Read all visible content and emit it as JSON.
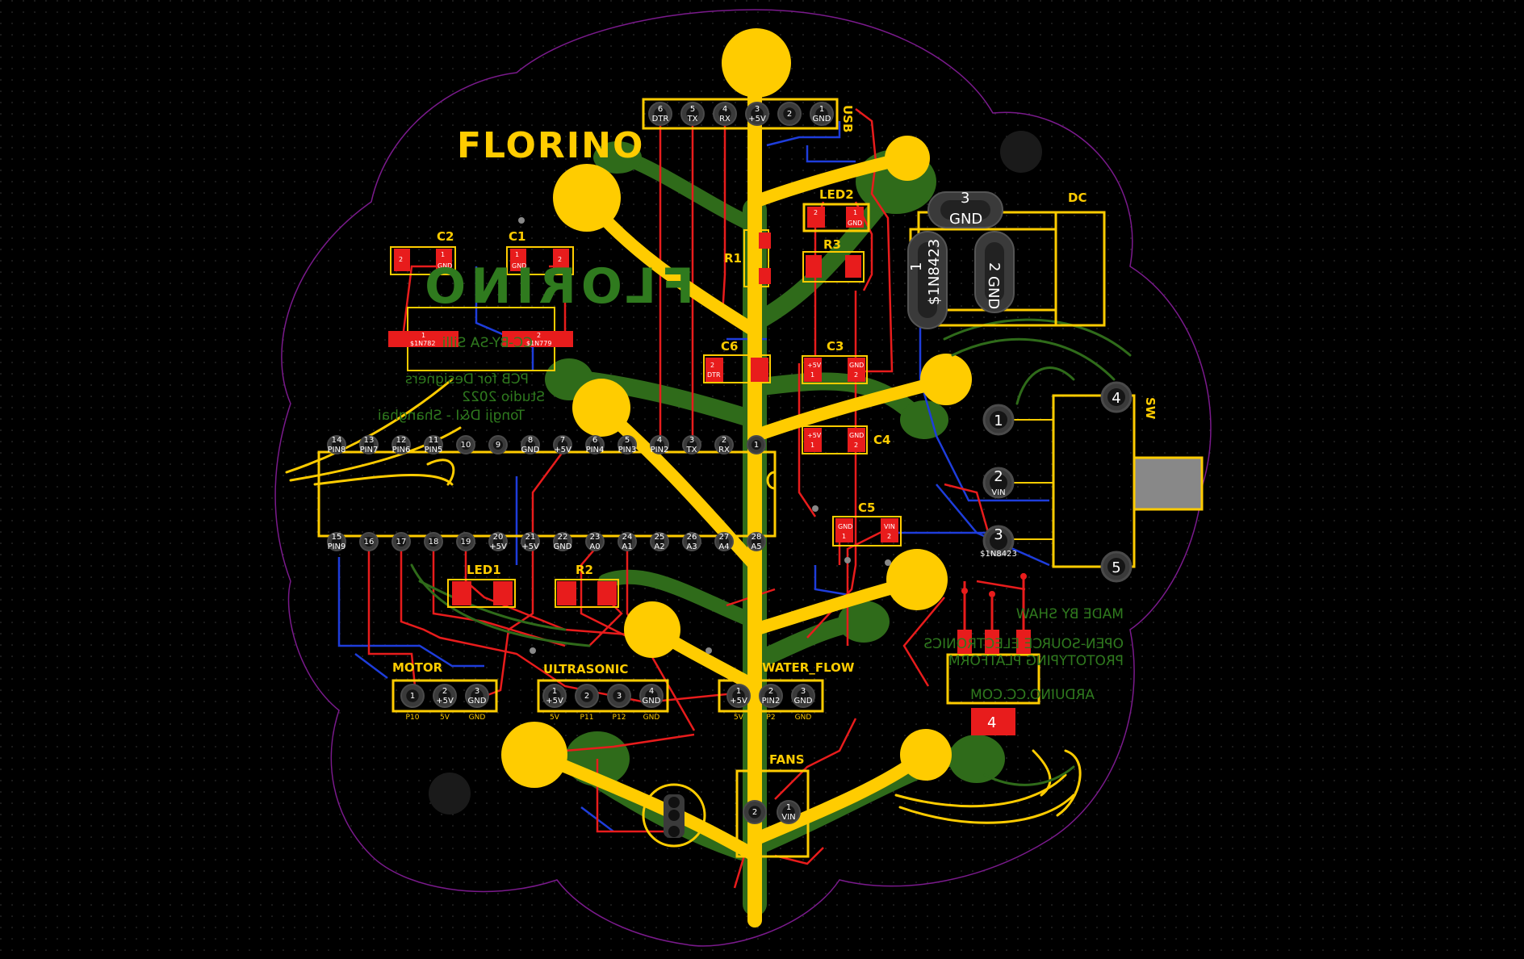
{
  "logo": {
    "text": "FLORINO",
    "mirrored_text": "FLORINO"
  },
  "mirrored_notes": [
    "MADE BY SHAW",
    "OPEN-SOURCE ELECTRONICS",
    "PROTOTYPING PLATFORM",
    "ARDUINO.CC.COM"
  ],
  "mirrored_credits": [
    "CC-BY-SA Silli",
    "PCB for Designers",
    "Studio 2022",
    "Tongji D&I - Shanghai"
  ],
  "colors": {
    "background": "#000000",
    "silkscreen": "#ffcc00",
    "top_copper": "#e81c1c",
    "bottom_copper": "#1e3ddb",
    "ground_art": "#2f6b1a",
    "pad": "#3a3a3a",
    "outline": "#7a1a8c"
  },
  "components": {
    "usb": {
      "ref": "USB",
      "pins": [
        {
          "num": "6",
          "name": "DTR"
        },
        {
          "num": "5",
          "name": "TX"
        },
        {
          "num": "4",
          "name": "RX"
        },
        {
          "num": "3",
          "name": "+5V"
        },
        {
          "num": "2",
          "name": ""
        },
        {
          "num": "1",
          "name": "GND"
        }
      ]
    },
    "led2": {
      "ref": "LED2",
      "pad1": "1",
      "pad1_net": "GND",
      "pad2": "2"
    },
    "r1": {
      "ref": "R1"
    },
    "r3": {
      "ref": "R3"
    },
    "c1": {
      "ref": "C1",
      "pad1_net": "GND",
      "pad1": "1",
      "pad2": "2"
    },
    "c2": {
      "ref": "C2",
      "pad1_net": "GND",
      "pad1": "1",
      "pad2": "2"
    },
    "c3": {
      "ref": "C3",
      "pad1_net": "+5V",
      "pad1": "1",
      "pad2_net": "GND",
      "pad2": "2"
    },
    "c4": {
      "ref": "C4",
      "pad1_net": "+5V",
      "pad1": "1",
      "pad2_net": "GND",
      "pad2": "2"
    },
    "c5": {
      "ref": "C5",
      "pad1_net": "GND",
      "pad1": "1",
      "pad2_net": "VIN",
      "pad2": "2"
    },
    "c6": {
      "ref": "C6",
      "pad1_net": "DTR",
      "pad1": "2"
    },
    "dc": {
      "ref": "DC",
      "pin3": "3",
      "pin3_net": "GND",
      "pin1": "1",
      "pin1_net": "$1N8423",
      "pin2": "2",
      "pin2_net": "GND"
    },
    "sw": {
      "ref": "SW",
      "pins": [
        {
          "num": "1",
          "name": ""
        },
        {
          "num": "2",
          "name": "VIN"
        },
        {
          "num": "3",
          "name": "$1N8423"
        },
        {
          "num": "4",
          "name": ""
        },
        {
          "num": "5",
          "name": ""
        }
      ]
    },
    "x1": {
      "pad1": "1",
      "pad1_net": "$1N782",
      "pad2": "2",
      "pad2_net": "$1N779"
    },
    "reg": {
      "tab": "4"
    },
    "led1": {
      "ref": "LED1"
    },
    "r2": {
      "ref": "R2"
    },
    "mcu": {
      "top_pins": [
        {
          "num": "14",
          "name": "PIN8"
        },
        {
          "num": "13",
          "name": "PIN7"
        },
        {
          "num": "12",
          "name": "PIN6"
        },
        {
          "num": "11",
          "name": "PIN5"
        },
        {
          "num": "10",
          "name": ""
        },
        {
          "num": "9",
          "name": ""
        },
        {
          "num": "8",
          "name": "GND"
        },
        {
          "num": "7",
          "name": "+5V"
        },
        {
          "num": "6",
          "name": "PIN4"
        },
        {
          "num": "5",
          "name": "PIN3"
        },
        {
          "num": "4",
          "name": "PIN2"
        },
        {
          "num": "3",
          "name": "TX"
        },
        {
          "num": "2",
          "name": "RX"
        },
        {
          "num": "1",
          "name": ""
        }
      ],
      "bottom_pins": [
        {
          "num": "15",
          "name": "PIN9"
        },
        {
          "num": "16",
          "name": ""
        },
        {
          "num": "17",
          "name": ""
        },
        {
          "num": "18",
          "name": ""
        },
        {
          "num": "19",
          "name": ""
        },
        {
          "num": "20",
          "name": "+5V"
        },
        {
          "num": "21",
          "name": "+5V"
        },
        {
          "num": "22",
          "name": "GND"
        },
        {
          "num": "23",
          "name": "A0"
        },
        {
          "num": "24",
          "name": "A1"
        },
        {
          "num": "25",
          "name": "A2"
        },
        {
          "num": "26",
          "name": "A3"
        },
        {
          "num": "27",
          "name": "A4"
        },
        {
          "num": "28",
          "name": "A5"
        }
      ]
    },
    "motor": {
      "ref": "MOTOR",
      "pins": [
        {
          "num": "1",
          "name": "",
          "sub": "P10"
        },
        {
          "num": "2",
          "name": "+5V",
          "sub": "5V"
        },
        {
          "num": "3",
          "name": "GND",
          "sub": "GND"
        }
      ]
    },
    "ultrasonic": {
      "ref": "ULTRASONIC",
      "pins": [
        {
          "num": "1",
          "name": "+5V",
          "sub": "5V"
        },
        {
          "num": "2",
          "name": "",
          "sub": "P11"
        },
        {
          "num": "3",
          "name": "",
          "sub": "P12"
        },
        {
          "num": "4",
          "name": "GND",
          "sub": "GND"
        }
      ]
    },
    "water_flow": {
      "ref": "WATER_FLOW",
      "pins": [
        {
          "num": "1",
          "name": "+5V",
          "sub": "5V"
        },
        {
          "num": "2",
          "name": "PIN2",
          "sub": "P2"
        },
        {
          "num": "3",
          "name": "GND",
          "sub": "GND"
        }
      ]
    },
    "fans": {
      "ref": "FANS",
      "pins": [
        {
          "num": "2",
          "name": ""
        },
        {
          "num": "1",
          "name": "VIN"
        }
      ]
    }
  }
}
